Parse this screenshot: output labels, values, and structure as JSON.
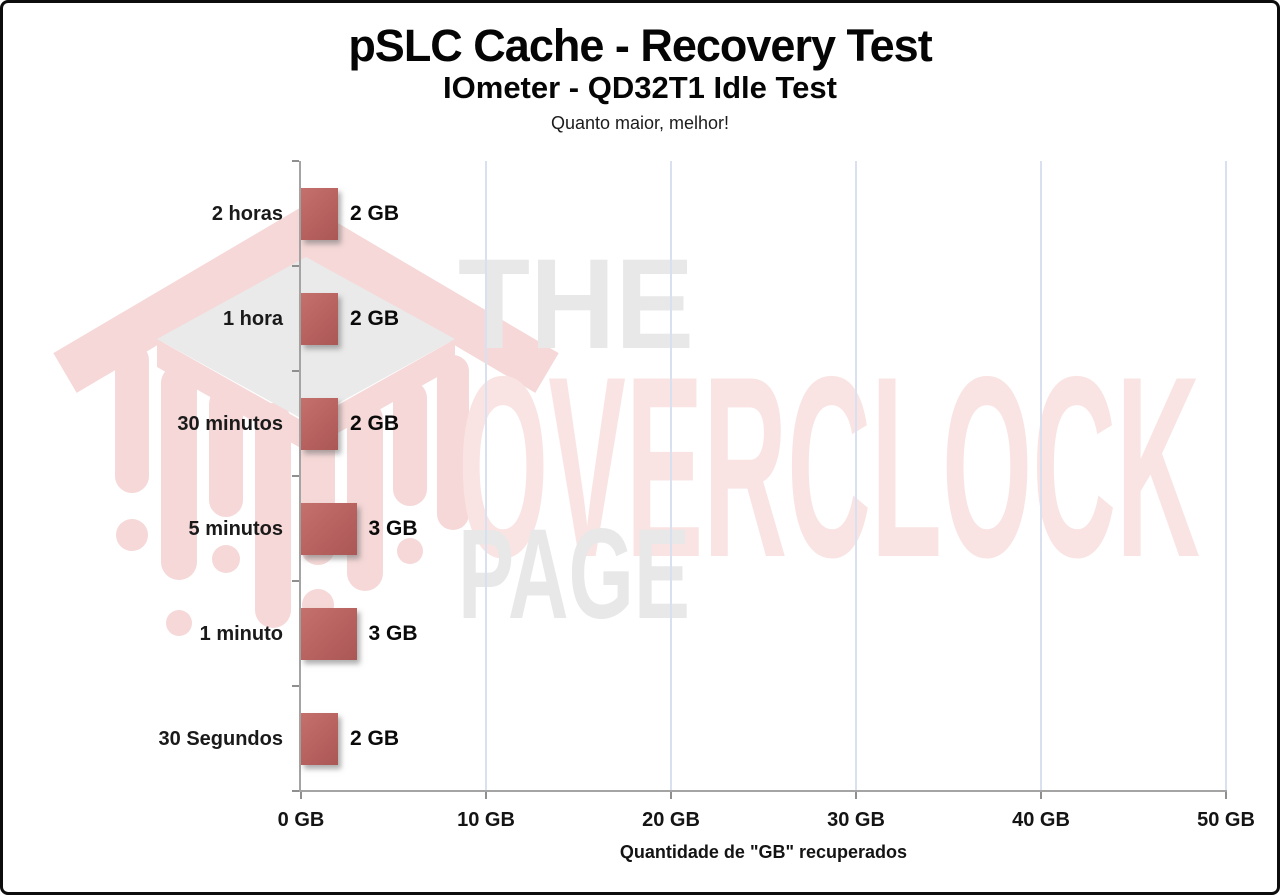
{
  "header": {
    "title": "pSLC Cache - Recovery Test",
    "subtitle": "IOmeter - QD32T1 Idle Test",
    "note": "Quanto maior, melhor!"
  },
  "watermark": {
    "line1": "THE",
    "line2": "OVERCLOCK",
    "line3": "PAGE",
    "gray_text_color": "#e8e8e8",
    "red_text_color": "#f9e4e3",
    "logo_pink_color": "#f5d8d7",
    "logo_gray_color": "#eaeaea"
  },
  "chart_data": {
    "type": "bar",
    "orientation": "horizontal",
    "title": "pSLC Cache - Recovery Test",
    "subtitle": "IOmeter - QD32T1 Idle Test",
    "categories": [
      "2 horas",
      "1 hora",
      "30 minutos",
      "5 minutos",
      "1 minuto",
      "30 Segundos"
    ],
    "values": [
      2,
      2,
      2,
      3,
      3,
      2
    ],
    "value_labels": [
      "2 GB",
      "2 GB",
      "2 GB",
      "3 GB",
      "3 GB",
      "2 GB"
    ],
    "xlabel": "Quantidade de \"GB\" recuperados",
    "ylabel": "",
    "xlim": [
      0,
      50
    ],
    "x_tick_values": [
      0,
      10,
      20,
      30,
      40,
      50
    ],
    "x_tick_labels": [
      "0 GB",
      "10 GB",
      "20 GB",
      "30 GB",
      "40 GB",
      "50 GB"
    ],
    "grid": true,
    "legend": false,
    "bar_color": "#b96361",
    "gridline_color": "#d9e1f0",
    "axis_color": "#a4a4a4"
  }
}
